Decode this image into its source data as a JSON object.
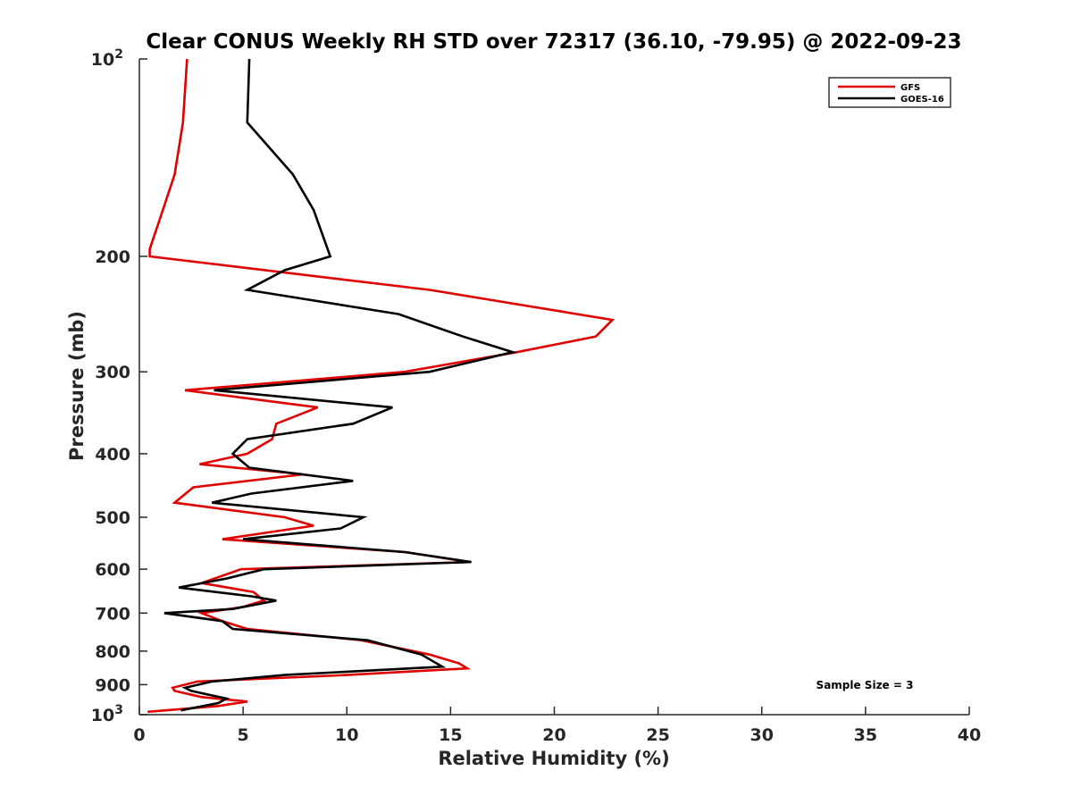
{
  "chart_data": {
    "type": "line",
    "title": "Clear CONUS Weekly RH STD over 72317 (36.10, -79.95) @ 2022-09-23",
    "xlabel": "Relative Humidity (%)",
    "ylabel": "Pressure (mb)",
    "xlim": [
      0,
      40
    ],
    "ylim": [
      100,
      1000
    ],
    "y_scale": "log",
    "y_reversed": true,
    "grid": false,
    "legend_position": "top-right",
    "x_ticks": [
      "0",
      "5",
      "10",
      "15",
      "20",
      "25",
      "30",
      "35",
      "40"
    ],
    "y_ticks": [
      {
        "value": 100,
        "base": "10",
        "exp": "2"
      },
      {
        "value": 200,
        "label": "200"
      },
      {
        "value": 300,
        "label": "300"
      },
      {
        "value": 400,
        "label": "400"
      },
      {
        "value": 500,
        "label": "500"
      },
      {
        "value": 600,
        "label": "600"
      },
      {
        "value": 700,
        "label": "700"
      },
      {
        "value": 800,
        "label": "800"
      },
      {
        "value": 900,
        "label": "900"
      },
      {
        "value": 1000,
        "base": "10",
        "exp": "3"
      }
    ],
    "annotation": "Sample Size = 3",
    "series": [
      {
        "name": "GFS",
        "color": "#e00000",
        "points": [
          [
            2.3,
            100
          ],
          [
            2.1,
            125
          ],
          [
            1.7,
            150
          ],
          [
            1.0,
            175
          ],
          [
            0.5,
            195
          ],
          [
            0.5,
            200
          ],
          [
            14.0,
            225
          ],
          [
            22.8,
            250
          ],
          [
            22.0,
            265
          ],
          [
            18.2,
            280
          ],
          [
            12.8,
            300
          ],
          [
            2.2,
            320
          ],
          [
            8.6,
            340
          ],
          [
            6.6,
            360
          ],
          [
            6.4,
            380
          ],
          [
            5.2,
            400
          ],
          [
            2.9,
            415
          ],
          [
            7.9,
            430
          ],
          [
            2.6,
            450
          ],
          [
            1.7,
            475
          ],
          [
            7.0,
            500
          ],
          [
            8.4,
            515
          ],
          [
            4.0,
            540
          ],
          [
            12.8,
            565
          ],
          [
            15.9,
            585
          ],
          [
            4.9,
            600
          ],
          [
            3.0,
            630
          ],
          [
            5.5,
            650
          ],
          [
            6.0,
            670
          ],
          [
            5.0,
            685
          ],
          [
            3.0,
            700
          ],
          [
            4.0,
            720
          ],
          [
            5.2,
            740
          ],
          [
            10.7,
            770
          ],
          [
            14.0,
            810
          ],
          [
            15.4,
            835
          ],
          [
            15.8,
            850
          ],
          [
            10.0,
            870
          ],
          [
            2.8,
            890
          ],
          [
            1.6,
            910
          ],
          [
            1.7,
            920
          ],
          [
            3.0,
            940
          ],
          [
            5.2,
            955
          ],
          [
            3.8,
            970
          ],
          [
            0.4,
            990
          ]
        ]
      },
      {
        "name": "GOES-16",
        "color": "#000000",
        "points": [
          [
            5.3,
            100
          ],
          [
            5.2,
            125
          ],
          [
            7.4,
            150
          ],
          [
            8.4,
            170
          ],
          [
            9.2,
            200
          ],
          [
            7.0,
            210
          ],
          [
            5.2,
            225
          ],
          [
            12.5,
            245
          ],
          [
            15.6,
            265
          ],
          [
            18.0,
            280
          ],
          [
            14.0,
            300
          ],
          [
            3.6,
            320
          ],
          [
            12.2,
            340
          ],
          [
            10.3,
            360
          ],
          [
            5.2,
            380
          ],
          [
            4.5,
            400
          ],
          [
            5.3,
            420
          ],
          [
            10.3,
            440
          ],
          [
            5.4,
            460
          ],
          [
            3.5,
            475
          ],
          [
            10.8,
            500
          ],
          [
            9.7,
            520
          ],
          [
            5.0,
            540
          ],
          [
            12.8,
            565
          ],
          [
            16.0,
            585
          ],
          [
            6.0,
            600
          ],
          [
            4.2,
            620
          ],
          [
            1.9,
            640
          ],
          [
            5.4,
            660
          ],
          [
            6.6,
            670
          ],
          [
            4.5,
            690
          ],
          [
            1.2,
            700
          ],
          [
            4.0,
            720
          ],
          [
            4.5,
            740
          ],
          [
            11.0,
            770
          ],
          [
            13.6,
            810
          ],
          [
            14.6,
            845
          ],
          [
            7.0,
            870
          ],
          [
            3.5,
            890
          ],
          [
            2.2,
            910
          ],
          [
            2.5,
            920
          ],
          [
            4.2,
            945
          ],
          [
            3.8,
            960
          ],
          [
            2.0,
            985
          ]
        ]
      }
    ]
  }
}
